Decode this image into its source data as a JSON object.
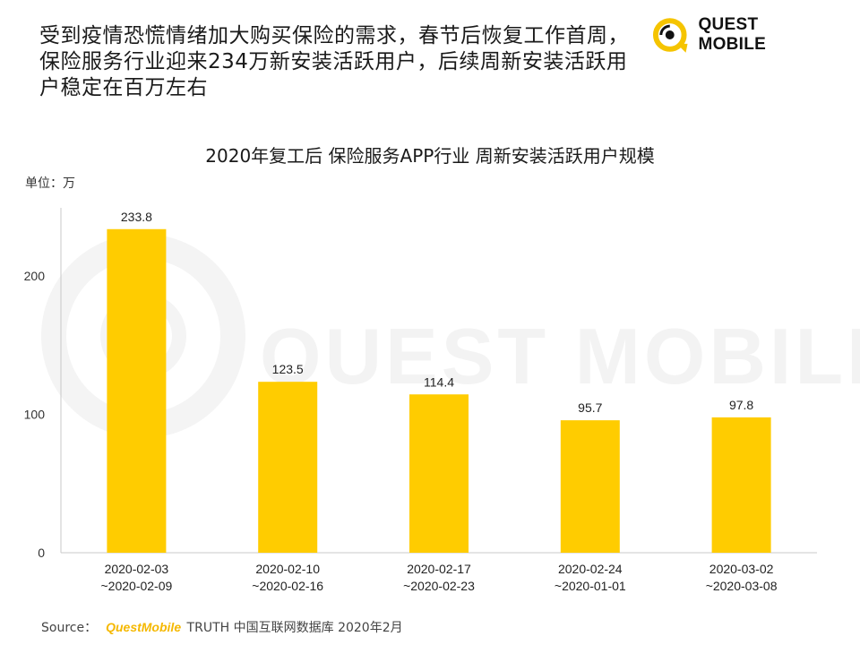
{
  "headline": {
    "lines": [
      "受到疫情恐慌情绪加大购买保险的需求，春节后恢复工作首周，",
      "保险服务行业迎来234万新安装活跃用户，后续周新安装活跃用",
      "户稳定在百万左右"
    ]
  },
  "logo": {
    "text": "QUEST MOBILE",
    "icon": "questmobile-logo-icon",
    "accent_color": "#f5c400"
  },
  "watermark": {
    "text": "QUEST MOBILE"
  },
  "unit_label": "单位：万",
  "source": {
    "prefix": "Source：",
    "brand": "QuestMobile",
    "rest": " TRUTH 中国互联网数据库 2020年2月"
  },
  "chart_data": {
    "type": "bar",
    "title": "2020年复工后 保险服务APP行业 周新安装活跃用户规模",
    "categories": [
      "2020-02-03\n~2020-02-09",
      "2020-02-10\n~2020-02-16",
      "2020-02-17\n~2020-02-23",
      "2020-02-24\n~2020-01-01",
      "2020-03-02\n~2020-03-08"
    ],
    "values": [
      233.8,
      123.5,
      114.4,
      95.7,
      97.8
    ],
    "value_labels": [
      "233.8",
      "123.5",
      "114.4",
      "95.7",
      "97.8"
    ],
    "yticks": [
      "0",
      "100",
      "200"
    ],
    "ylim": [
      0,
      250
    ],
    "bar_color": "#ffcc00",
    "grid": false
  }
}
